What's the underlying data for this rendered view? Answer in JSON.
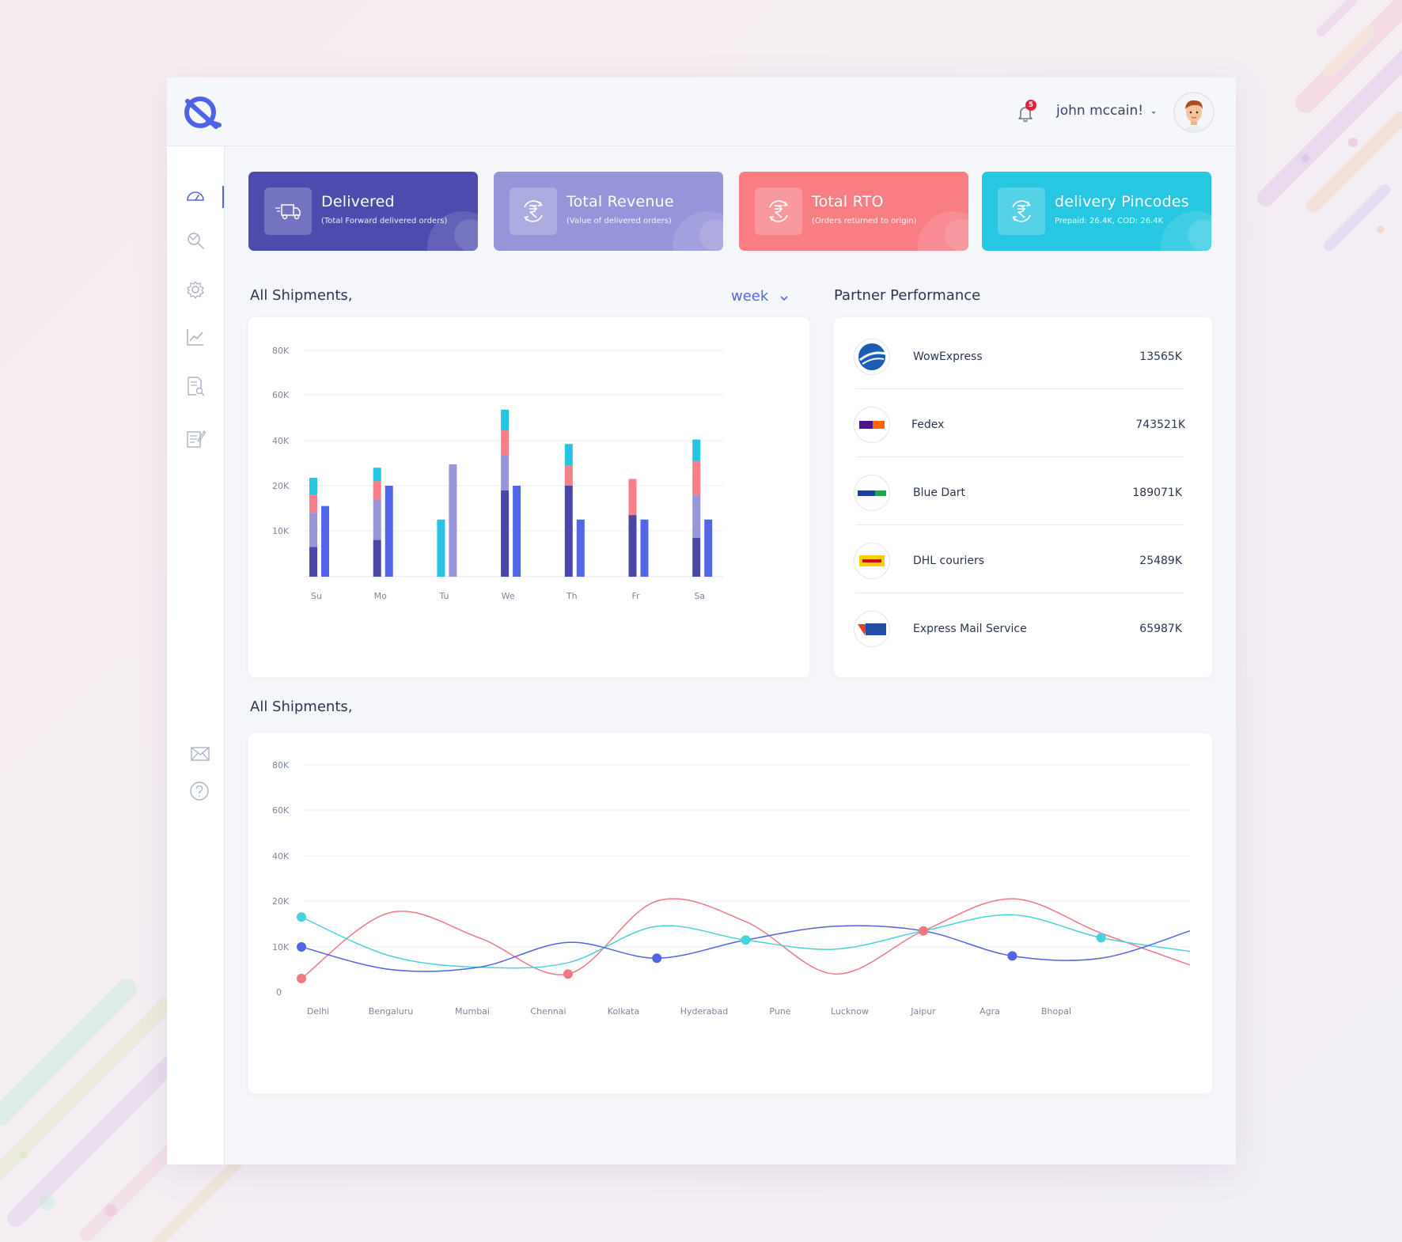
{
  "header": {
    "notification_count": "5",
    "user_name": "john mccain!"
  },
  "sidebar": {
    "items": [
      {
        "icon": "dashboard-gauge-icon",
        "active": true
      },
      {
        "icon": "search-tracking-icon"
      },
      {
        "icon": "gear-icon"
      },
      {
        "icon": "line-chart-icon"
      },
      {
        "icon": "report-search-icon"
      },
      {
        "icon": "notes-edit-icon"
      }
    ],
    "bottom_items": [
      {
        "icon": "mail-icon"
      },
      {
        "icon": "help-icon"
      }
    ]
  },
  "cards": [
    {
      "title": "Delivered",
      "subtitle": "(Total Forward delivered orders)",
      "icon": "truck-icon",
      "color": "#4d4cae"
    },
    {
      "title": "Total Revenue",
      "subtitle": "(Value of delivered orders)",
      "icon": "rupee-cycle-icon",
      "color": "#9795d9"
    },
    {
      "title": "Total RTO",
      "subtitle": "(Orders returned to origin)",
      "icon": "rupee-cycle-icon",
      "color": "#f97e84"
    },
    {
      "title": "delivery Pincodes",
      "subtitle": "Prepaid: 26.4K, COD: 26.4K",
      "icon": "rupee-cycle-icon",
      "color": "#27c6e1"
    }
  ],
  "shipments_section": {
    "title": "All Shipments,",
    "period_selected": "week"
  },
  "partner_section": {
    "title": "Partner Performance",
    "partners": [
      {
        "name": "WowExpress",
        "value": "13565K",
        "logo": "wowexpress-logo"
      },
      {
        "name": "Fedex",
        "value": "743521K",
        "logo": "fedex-logo"
      },
      {
        "name": "Blue Dart",
        "value": "189071K",
        "logo": "bluedart-logo"
      },
      {
        "name": "DHL couriers",
        "value": "25489K",
        "logo": "dhl-logo"
      },
      {
        "name": "Express Mail Service",
        "value": "65987K",
        "logo": "ems-logo"
      }
    ]
  },
  "city_section": {
    "title": "All Shipments,"
  },
  "colors": {
    "dark_blue": "#4b47a9",
    "lavender": "#9896d8",
    "coral": "#f77f88",
    "cyan": "#27c3e0",
    "blue": "#5266e9",
    "line_coral": "#f07884",
    "line_teal": "#45d3dc",
    "line_blue": "#5363e4"
  },
  "chart_data": [
    {
      "type": "bar",
      "title": "All Shipments,",
      "stacked_with_side_bar": true,
      "categories": [
        "Su",
        "Mo",
        "Tu",
        "We",
        "Th",
        "Fr",
        "Sa"
      ],
      "yticks": [
        "10K",
        "20K",
        "40K",
        "60K",
        "80K"
      ],
      "ylim": [
        0,
        80
      ],
      "series_stacked": [
        {
          "color": "#4b47a9",
          "values": [
            6.5,
            8,
            0,
            19,
            20,
            13.5,
            8.5
          ]
        },
        {
          "color": "#9896d8",
          "values": [
            7.5,
            9,
            0,
            0,
            0,
            0,
            9.5
          ]
        },
        {
          "color": "#9896d8",
          "values": [
            0,
            0,
            0,
            14.5,
            0,
            0,
            0
          ]
        },
        {
          "color": "#f77f88",
          "values": [
            4,
            5,
            0,
            11,
            9,
            9.5,
            13
          ]
        },
        {
          "color": "#27c3e0",
          "values": [
            5.5,
            6,
            12.5,
            9,
            9.5,
            0,
            9.5
          ]
        }
      ],
      "tu_stack": {
        "color": "#9896d8",
        "value": 29.5
      },
      "side_bar": {
        "color": "#5266e9",
        "values": [
          15.5,
          20,
          0,
          20,
          12.5,
          12.5,
          12.5
        ]
      },
      "grid": true
    },
    {
      "type": "line",
      "title": "All Shipments,",
      "categories": [
        "Delhi",
        "Bengaluru",
        "Mumbai",
        "Chennai",
        "Kolkata",
        "Hyderabad",
        "Pune",
        "Lucknow",
        "Jaipur",
        "Agra",
        "Bhopal"
      ],
      "yticks": [
        "0",
        "10K",
        "20K",
        "40K",
        "60K",
        "80K"
      ],
      "smooth": true,
      "grid": true,
      "series": [
        {
          "color": "#f07884",
          "x": [
            0,
            1,
            2,
            3,
            4,
            5,
            6,
            7,
            8,
            9,
            10
          ],
          "y": [
            3,
            17.5,
            12,
            4,
            20,
            15.5,
            4,
            13.5,
            21,
            13,
            6
          ]
        },
        {
          "color": "#45d3dc",
          "x": [
            0,
            1,
            2,
            3,
            4,
            5,
            6,
            7,
            8,
            9,
            10
          ],
          "y": [
            16.5,
            8,
            5.5,
            6.5,
            14.5,
            11.5,
            9.5,
            13.5,
            17,
            12,
            9
          ]
        },
        {
          "color": "#5363e4",
          "x": [
            0,
            1,
            2,
            3,
            4,
            5,
            6,
            7,
            8,
            9,
            10
          ],
          "y": [
            10,
            5,
            5.5,
            11,
            7.5,
            11.5,
            14.5,
            13.5,
            8,
            7.5,
            13.5
          ]
        }
      ],
      "markers": [
        {
          "series": 0,
          "x": 0,
          "y": 3
        },
        {
          "series": 1,
          "x": 0,
          "y": 16.5
        },
        {
          "series": 2,
          "x": 0,
          "y": 10
        },
        {
          "series": 0,
          "x": 3,
          "y": 4
        },
        {
          "series": 2,
          "x": 4,
          "y": 7.5
        },
        {
          "series": 1,
          "x": 5,
          "y": 11.5
        },
        {
          "series": 0,
          "x": 7,
          "y": 13.5
        },
        {
          "series": 2,
          "x": 8,
          "y": 8
        },
        {
          "series": 1,
          "x": 9,
          "y": 12
        }
      ]
    }
  ]
}
